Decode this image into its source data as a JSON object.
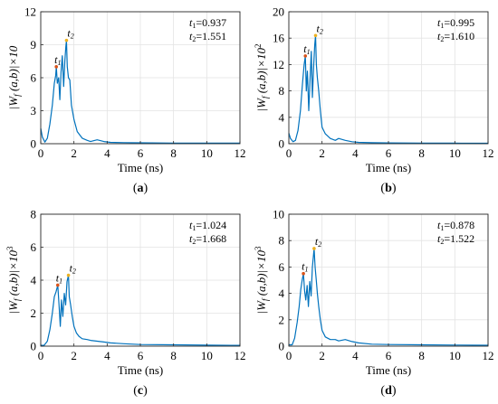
{
  "chart_data": [
    {
      "type": "line",
      "panel_label": "(a)",
      "xlabel": "Time (ns)",
      "ylabel": "|W_f(a,b)|×10",
      "ylabel_base": "|W",
      "ylabel_sub": "f",
      "ylabel_rest": " (a,b)|×10",
      "ylabel_sup": "",
      "xlim": [
        0,
        12
      ],
      "ylim": [
        0,
        12
      ],
      "xticks": [
        0,
        2,
        4,
        6,
        8,
        10,
        12
      ],
      "yticks": [
        0,
        3,
        6,
        9,
        12
      ],
      "grid": true,
      "color": "#0072bd",
      "annotation_lines": [
        "t1=0.937",
        "t2=1.551"
      ],
      "markers": [
        {
          "label": "t1",
          "x": 0.937,
          "y": 7.0,
          "color": "#d95319"
        },
        {
          "label": "t2",
          "x": 1.551,
          "y": 9.4,
          "color": "#edb120"
        }
      ],
      "series": [
        {
          "x": [
            0,
            0.1,
            0.25,
            0.4,
            0.55,
            0.7,
            0.82,
            0.9,
            0.937,
            1.0,
            1.08,
            1.15,
            1.22,
            1.3,
            1.38,
            1.45,
            1.51,
            1.551,
            1.6,
            1.67,
            1.75,
            1.85,
            2.0,
            2.2,
            2.5,
            2.8,
            3.0,
            3.4,
            3.8,
            4.2,
            5,
            6,
            8,
            10,
            12
          ],
          "y": [
            1.4,
            0.6,
            0.15,
            0.5,
            1.8,
            3.5,
            5.5,
            6.2,
            7.0,
            5.5,
            6.0,
            4.0,
            6.5,
            8.0,
            5.2,
            7.5,
            8.8,
            9.4,
            7.0,
            6.0,
            5.8,
            3.5,
            2.2,
            1.1,
            0.5,
            0.3,
            0.2,
            0.35,
            0.2,
            0.12,
            0.1,
            0.08,
            0.06,
            0.05,
            0.05
          ]
        }
      ]
    },
    {
      "type": "line",
      "panel_label": "(b)",
      "xlabel": "Time (ns)",
      "ylabel": "|W_f(a,b)|×10^2",
      "ylabel_base": "|W",
      "ylabel_sub": "f",
      "ylabel_rest": " (a,b)|×10",
      "ylabel_sup": "2",
      "xlim": [
        0,
        12
      ],
      "ylim": [
        0,
        20
      ],
      "xticks": [
        0,
        2,
        4,
        6,
        8,
        10,
        12
      ],
      "yticks": [
        0,
        4,
        8,
        12,
        16,
        20
      ],
      "grid": true,
      "color": "#0072bd",
      "annotation_lines": [
        "t1=0.995",
        "t2=1.610"
      ],
      "markers": [
        {
          "label": "t1",
          "x": 0.995,
          "y": 13.3,
          "color": "#d95319"
        },
        {
          "label": "t2",
          "x": 1.61,
          "y": 16.4,
          "color": "#edb120"
        }
      ],
      "series": [
        {
          "x": [
            0,
            0.1,
            0.25,
            0.4,
            0.55,
            0.7,
            0.82,
            0.92,
            0.995,
            1.05,
            1.12,
            1.2,
            1.28,
            1.35,
            1.42,
            1.5,
            1.56,
            1.61,
            1.66,
            1.72,
            1.8,
            1.9,
            2.0,
            2.2,
            2.5,
            2.8,
            3.0,
            3.4,
            3.8,
            4.2,
            5,
            6,
            8,
            10,
            12
          ],
          "y": [
            1.6,
            0.8,
            0.3,
            0.5,
            2.0,
            5.0,
            9.0,
            12.0,
            13.3,
            8.0,
            11.0,
            5.0,
            10.0,
            14.0,
            7.0,
            12.0,
            15.0,
            16.4,
            12.0,
            10.0,
            8.0,
            5.0,
            2.5,
            1.5,
            0.8,
            0.5,
            0.8,
            0.5,
            0.3,
            0.2,
            0.15,
            0.12,
            0.1,
            0.08,
            0.07
          ]
        }
      ]
    },
    {
      "type": "line",
      "panel_label": "(c)",
      "xlabel": "Time (ns)",
      "ylabel": "|W_f(a,b)|×10^3",
      "ylabel_base": "|W",
      "ylabel_sub": "f",
      "ylabel_rest": " (a,b)|×10",
      "ylabel_sup": "3",
      "xlim": [
        0,
        12
      ],
      "ylim": [
        0,
        8
      ],
      "xticks": [
        0,
        2,
        4,
        6,
        8,
        10,
        12
      ],
      "yticks": [
        0,
        2,
        4,
        6,
        8
      ],
      "grid": true,
      "color": "#0072bd",
      "annotation_lines": [
        "t1=1.024",
        "t2=1.668"
      ],
      "markers": [
        {
          "label": "t1",
          "x": 1.024,
          "y": 3.7,
          "color": "#d95319"
        },
        {
          "label": "t2",
          "x": 1.668,
          "y": 4.3,
          "color": "#edb120"
        }
      ],
      "series": [
        {
          "x": [
            0,
            0.2,
            0.4,
            0.55,
            0.7,
            0.82,
            0.92,
            1.024,
            1.1,
            1.18,
            1.25,
            1.33,
            1.42,
            1.5,
            1.58,
            1.668,
            1.72,
            1.8,
            1.9,
            2.0,
            2.15,
            2.3,
            2.5,
            2.8,
            3.0,
            3.4,
            3.8,
            4.2,
            5,
            6,
            8,
            10,
            12
          ],
          "y": [
            0.05,
            0.05,
            0.3,
            1.0,
            2.0,
            3.0,
            3.3,
            3.7,
            2.5,
            1.2,
            2.8,
            1.8,
            3.2,
            2.5,
            3.9,
            4.3,
            3.0,
            2.5,
            1.8,
            1.2,
            0.8,
            0.6,
            0.45,
            0.4,
            0.35,
            0.3,
            0.25,
            0.2,
            0.15,
            0.1,
            0.08,
            0.06,
            0.05
          ]
        }
      ]
    },
    {
      "type": "line",
      "panel_label": "(d)",
      "xlabel": "Time (ns)",
      "ylabel": "|W_f(a,b)|×10^3",
      "ylabel_base": "|W",
      "ylabel_sub": "f",
      "ylabel_rest": " (a,b)|×10",
      "ylabel_sup": "3",
      "xlim": [
        0,
        12
      ],
      "ylim": [
        0,
        10
      ],
      "xticks": [
        0,
        2,
        4,
        6,
        8,
        10,
        12
      ],
      "yticks": [
        0,
        2,
        4,
        6,
        8,
        10
      ],
      "grid": true,
      "color": "#0072bd",
      "annotation_lines": [
        "t1=0.878",
        "t2=1.522"
      ],
      "markers": [
        {
          "label": "t1",
          "x": 0.878,
          "y": 5.5,
          "color": "#d95319"
        },
        {
          "label": "t2",
          "x": 1.522,
          "y": 7.4,
          "color": "#edb120"
        }
      ],
      "series": [
        {
          "x": [
            0,
            0.2,
            0.35,
            0.5,
            0.62,
            0.72,
            0.8,
            0.878,
            0.95,
            1.02,
            1.1,
            1.18,
            1.26,
            1.34,
            1.42,
            1.48,
            1.522,
            1.58,
            1.65,
            1.72,
            1.8,
            1.9,
            2.0,
            2.2,
            2.5,
            2.8,
            3.0,
            3.4,
            3.8,
            4.2,
            5,
            6,
            8,
            10,
            12
          ],
          "y": [
            0.1,
            0.1,
            0.6,
            1.8,
            3.0,
            4.3,
            5.0,
            5.5,
            4.2,
            3.5,
            4.6,
            3.0,
            4.9,
            3.8,
            6.0,
            6.8,
            7.4,
            6.0,
            5.0,
            4.0,
            3.0,
            2.0,
            1.2,
            0.7,
            0.5,
            0.5,
            0.4,
            0.5,
            0.35,
            0.25,
            0.15,
            0.12,
            0.1,
            0.08,
            0.07
          ]
        }
      ]
    }
  ]
}
